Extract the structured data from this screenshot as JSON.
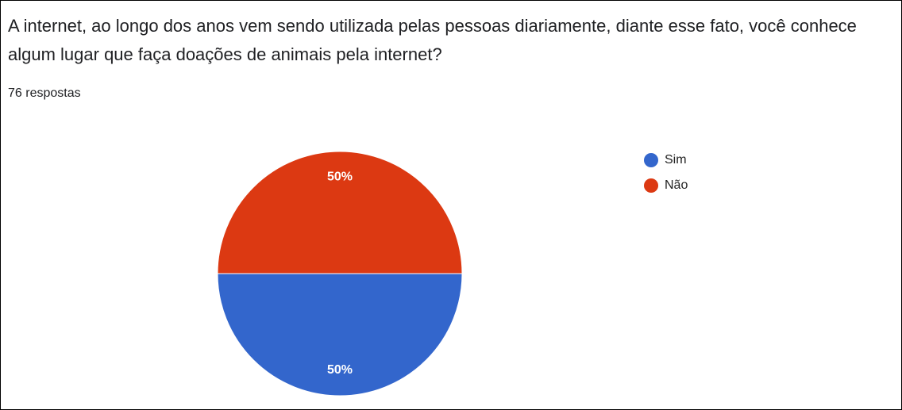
{
  "chart_data": {
    "type": "pie",
    "title": "A internet, ao longo dos anos vem sendo utilizada pelas pessoas diariamente, diante esse fato, você conhece algum lugar que faça doações de animais pela internet?",
    "subtitle": "76 respostas",
    "categories": [
      "Sim",
      "Não"
    ],
    "values": [
      50,
      50
    ],
    "value_labels": [
      "50%",
      "50%"
    ],
    "colors": [
      "#3366cc",
      "#dc3912"
    ],
    "legend": "right"
  }
}
